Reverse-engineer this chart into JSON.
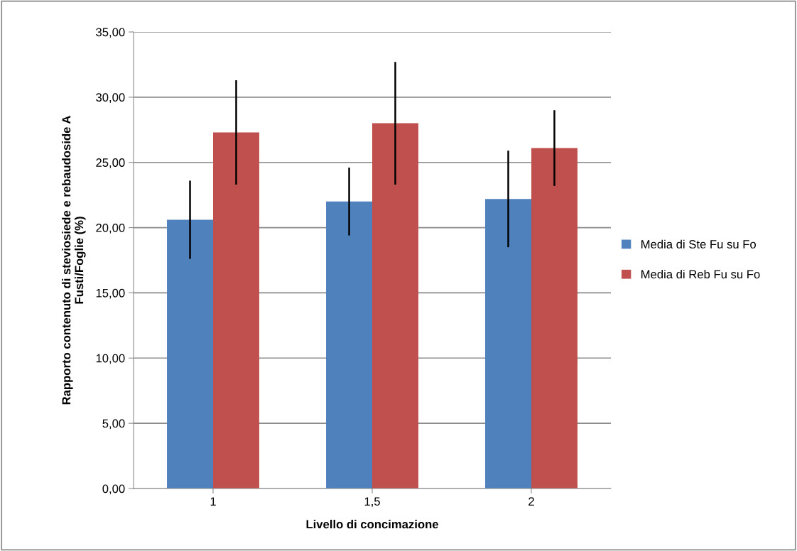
{
  "chart_data": {
    "type": "bar",
    "xlabel": "Livello di concimazione",
    "ylabel": "Rapporto contenuto di steviosiede e rebaudoside A\nFusti/Foglie (%)",
    "categories": [
      "1",
      "1,5",
      "2"
    ],
    "series": [
      {
        "name": "Media di Ste Fu su Fo",
        "color": "#4f81bd",
        "values": [
          20.6,
          22.0,
          22.2
        ],
        "errors": [
          3.0,
          2.6,
          3.7
        ]
      },
      {
        "name": "Media di Reb Fu su Fo",
        "color": "#c0504d",
        "values": [
          27.3,
          28.0,
          26.1
        ],
        "errors": [
          4.0,
          4.7,
          2.9
        ]
      }
    ],
    "ylim": [
      0,
      35
    ],
    "yticks": [
      {
        "value": 0,
        "label": "0,00"
      },
      {
        "value": 5,
        "label": "5,00"
      },
      {
        "value": 10,
        "label": "10,00"
      },
      {
        "value": 15,
        "label": "15,00"
      },
      {
        "value": 20,
        "label": "20,00"
      },
      {
        "value": 25,
        "label": "25,00"
      },
      {
        "value": 30,
        "label": "30,00"
      },
      {
        "value": 35,
        "label": "35,00"
      }
    ],
    "grid": "y",
    "legend": "right"
  }
}
